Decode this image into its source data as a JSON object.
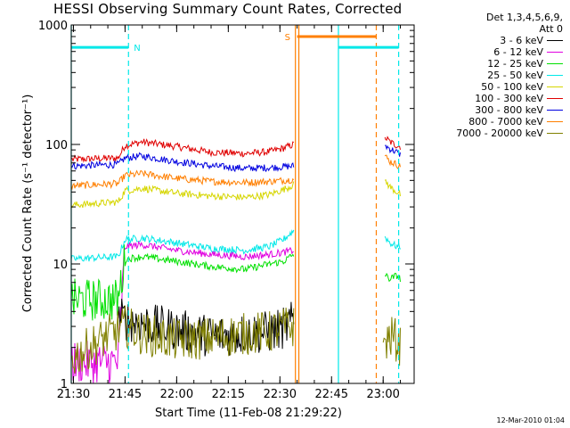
{
  "title": "HESSI Observing Summary Count Rates, Corrected",
  "timestamp": "12-Mar-2010 01:04",
  "legend": {
    "header_line1": "Det 1,3,4,5,6,9,",
    "header_line2": "Att 0",
    "items": [
      {
        "label": "3 - 6 keV",
        "color": "#000000"
      },
      {
        "label": "6 - 12 keV",
        "color": "#e000e0"
      },
      {
        "label": "12 - 25 keV",
        "color": "#00e000"
      },
      {
        "label": "25 - 50 keV",
        "color": "#00e8e8"
      },
      {
        "label": "50 - 100 keV",
        "color": "#d6d600"
      },
      {
        "label": "100 - 300 keV",
        "color": "#e00000"
      },
      {
        "label": "300 - 800 keV",
        "color": "#0000e0"
      },
      {
        "label": "800 - 7000 keV",
        "color": "#ff7f00"
      },
      {
        "label": "7000 - 20000 keV",
        "color": "#808000"
      }
    ]
  },
  "chart_data": {
    "type": "line",
    "title": "HESSI Observing Summary Count Rates, Corrected",
    "xlabel": "Start Time (11-Feb-08 21:29:22)",
    "ylabel": "Corrected Count Rate (s⁻¹ detector⁻¹)",
    "yscale": "log",
    "xlim": [
      "21:29:22",
      "23:09:00"
    ],
    "ylim": [
      1,
      1000
    ],
    "x_ticks": [
      "21:30",
      "21:45",
      "22:00",
      "22:15",
      "22:30",
      "22:45",
      "23:00"
    ],
    "y_ticks": [
      "1",
      "10",
      "100",
      "1000"
    ],
    "series": [
      {
        "name": "100 - 300 keV",
        "x": [
          "21:29:22",
          "21:43:00",
          "21:45:00",
          "21:50:00",
          "22:00:00",
          "22:10:00",
          "22:20:00",
          "22:27:00",
          "22:31:00",
          "22:34:00",
          "23:00:30",
          "23:02:00",
          "23:04:00",
          "23:05:00"
        ],
        "y": [
          75,
          77,
          98,
          105,
          96,
          86,
          84,
          87,
          93,
          100,
          115,
          105,
          98,
          96
        ]
      },
      {
        "name": "300 - 800 keV",
        "x": [
          "21:29:22",
          "21:43:00",
          "21:45:00",
          "21:50:00",
          "22:00:00",
          "22:10:00",
          "22:20:00",
          "22:27:00",
          "22:31:00",
          "22:34:00",
          "23:00:30",
          "23:02:00",
          "23:04:00",
          "23:05:00"
        ],
        "y": [
          66,
          68,
          77,
          80,
          72,
          66,
          63,
          64,
          65,
          66,
          98,
          92,
          86,
          82
        ]
      },
      {
        "name": "800 - 7000 keV",
        "x": [
          "21:29:22",
          "21:43:00",
          "21:45:00",
          "21:50:00",
          "22:00:00",
          "22:10:00",
          "22:20:00",
          "22:27:00",
          "22:31:00",
          "22:34:00",
          "23:00:30",
          "23:02:00",
          "23:04:00",
          "23:05:00"
        ],
        "y": [
          45,
          47,
          55,
          57,
          52,
          49,
          48,
          49,
          50,
          51,
          80,
          72,
          68,
          65
        ]
      },
      {
        "name": "50 - 100 keV",
        "x": [
          "21:29:22",
          "21:43:00",
          "21:45:00",
          "21:50:00",
          "22:00:00",
          "22:10:00",
          "22:20:00",
          "22:27:00",
          "22:31:00",
          "22:34:00",
          "23:00:30",
          "23:02:00",
          "23:04:00",
          "23:05:00"
        ],
        "y": [
          31,
          33,
          41,
          43,
          39,
          37,
          36,
          38,
          42,
          46,
          50,
          44,
          40,
          38
        ]
      },
      {
        "name": "25 - 50 keV",
        "x": [
          "21:29:22",
          "21:43:00",
          "21:45:00",
          "21:50:00",
          "22:00:00",
          "22:10:00",
          "22:20:00",
          "22:27:00",
          "22:31:00",
          "22:34:00",
          "23:00:30",
          "23:02:00",
          "23:04:00",
          "23:05:00"
        ],
        "y": [
          11,
          11.5,
          16,
          16.5,
          15,
          13.5,
          13,
          14,
          16,
          19,
          17,
          15,
          14,
          14
        ]
      },
      {
        "name": "6 - 12 keV",
        "x": [
          "21:29:22",
          "21:43:00",
          "21:45:00",
          "21:50:00",
          "22:00:00",
          "22:10:00",
          "22:20:00",
          "22:27:00",
          "22:31:00",
          "22:34:00"
        ],
        "y": [
          1.5,
          1.5,
          14,
          14.5,
          13,
          12,
          11.5,
          12,
          12.5,
          13
        ]
      },
      {
        "name": "12 - 25 keV",
        "x": [
          "21:29:22",
          "21:43:00",
          "21:45:00",
          "21:50:00",
          "22:00:00",
          "22:10:00",
          "22:20:00",
          "22:27:00",
          "22:31:00",
          "22:34:00",
          "23:00:30",
          "23:02:00",
          "23:04:00",
          "23:05:00"
        ],
        "y": [
          5,
          5,
          11,
          11.5,
          10.5,
          9.5,
          9,
          10,
          10.5,
          12,
          8,
          7.5,
          8,
          7.5
        ]
      },
      {
        "name": "3 - 6 keV",
        "x": [
          "21:43:00",
          "21:50:00",
          "22:00:00",
          "22:10:00",
          "22:20:00",
          "22:27:00",
          "22:31:00",
          "22:34:00"
        ],
        "y": [
          3.5,
          3.2,
          2.8,
          2.5,
          2.6,
          2.7,
          2.9,
          3.3
        ]
      },
      {
        "name": "7000 - 20000 keV",
        "x": [
          "21:29:22",
          "21:40:00",
          "21:45:00",
          "21:50:00",
          "22:00:00",
          "22:10:00",
          "22:20:00",
          "22:27:00",
          "22:31:00",
          "22:34:00",
          "23:00:00",
          "23:03:00",
          "23:05:00"
        ],
        "y": [
          1.6,
          2.5,
          3.0,
          2.6,
          2.3,
          2.4,
          2.6,
          2.7,
          2.9,
          3.0,
          2.2,
          2.5,
          2.0
        ]
      }
    ],
    "flags": [
      {
        "label": "N",
        "color": "#00e8e8",
        "start": "21:29:22",
        "end": "21:46:00",
        "level": 650
      },
      {
        "label": "S",
        "color": "#ff7f00",
        "start": "22:35:00",
        "end": "22:58:00",
        "level": 800
      },
      {
        "color": "#00e8e8",
        "start": "22:47:00",
        "end": "23:04:30",
        "level": 650
      }
    ],
    "markers": [
      {
        "time": "21:29:22",
        "color": "#00e8e8",
        "style": "solid"
      },
      {
        "time": "21:46:00",
        "color": "#00e8e8",
        "style": "dashed"
      },
      {
        "time": "22:34:30",
        "color": "#ff7f00",
        "style": "solid"
      },
      {
        "time": "22:35:30",
        "color": "#ff7f00",
        "style": "solid"
      },
      {
        "time": "22:47:00",
        "color": "#00e8e8",
        "style": "solid"
      },
      {
        "time": "22:58:00",
        "color": "#ff7f00",
        "style": "dashed"
      },
      {
        "time": "23:04:30",
        "color": "#00e8e8",
        "style": "dashed"
      }
    ]
  }
}
